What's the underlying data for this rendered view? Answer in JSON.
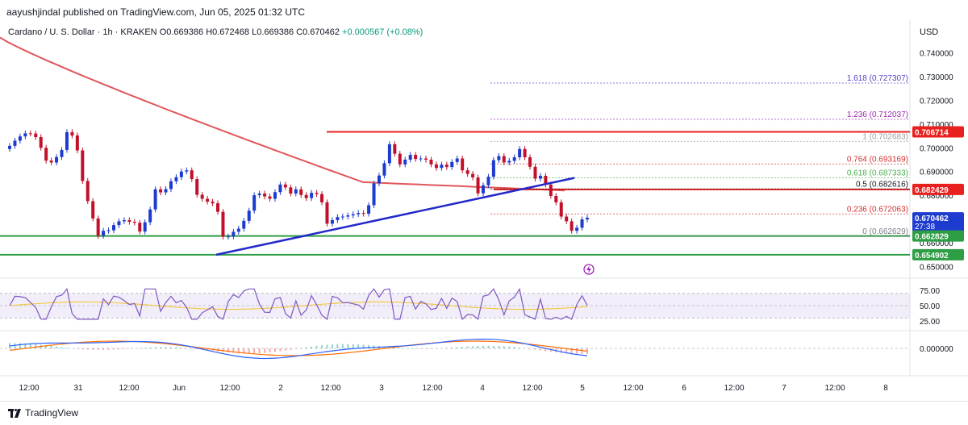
{
  "header": {
    "publisher_line": "aayushjindal published on TradingView.com, Jun 05, 2025 01:32 UTC"
  },
  "symbol": {
    "name": "Cardano / U. S. Dollar · 1h · KRAKEN",
    "o": "O0.669386",
    "h": "H0.672468",
    "l": "L0.669386",
    "c": "C0.670462",
    "change": "+0.000567 (+0.08%)"
  },
  "currency": "USD",
  "brand": "TradingView",
  "colors": {
    "up": "#1e3bcf",
    "down": "#c2102a",
    "ma": "#e0565b",
    "trend": "#2329c9",
    "red_line": "#e8211f",
    "green_line": "#2e9e45",
    "rsi": "#7e57c2",
    "macd": "#2962ff",
    "signal": "#ff6d00"
  },
  "chart_data": {
    "type": "candlestick",
    "ylim": [
      0.645,
      0.746
    ],
    "x_ticks": [
      "12:00",
      "31",
      "12:00",
      "Jun",
      "12:00",
      "2",
      "12:00",
      "3",
      "12:00",
      "4",
      "12:00",
      "5",
      "12:00",
      "6",
      "12:00",
      "7",
      "12:00",
      "8"
    ],
    "y_ticks": [
      "0.740000",
      "0.730000",
      "0.720000",
      "0.710000",
      "0.700000",
      "0.690000",
      "0.680000",
      "0.670000",
      "0.660000",
      "0.650000"
    ],
    "price_badges": [
      {
        "label": "0.706714",
        "value": 0.706714,
        "color": "#e8211f"
      },
      {
        "label": "0.682429",
        "value": 0.682429,
        "color": "#e8211f"
      },
      {
        "label": "0.670462",
        "value": 0.670462,
        "color": "#1e3bcf",
        "sub": "27:38"
      },
      {
        "label": "0.662829",
        "value": 0.662829,
        "color": "#2e9e45"
      },
      {
        "label": "0.654902",
        "value": 0.654902,
        "color": "#2e9e45"
      }
    ],
    "fib_levels": [
      {
        "label": "1.618 (0.727307)",
        "value": 0.727307,
        "color": "#5b3fc4"
      },
      {
        "label": "1.236 (0.712037)",
        "value": 0.712037,
        "color": "#9c27b0"
      },
      {
        "label": "1 (0.702683)",
        "value": 0.702683,
        "color": "#9e9e9e"
      },
      {
        "label": "0.764 (0.693169)",
        "value": 0.693169,
        "color": "#d32f2f"
      },
      {
        "label": "0.618 (0.687333)",
        "value": 0.687333,
        "color": "#4caf50"
      },
      {
        "label": "0.5 (0.682616)",
        "value": 0.682616,
        "color": "#131722"
      },
      {
        "label": "0.236 (0.672063)",
        "value": 0.672063,
        "color": "#d32f2f"
      },
      {
        "label": "0 (0.662629)",
        "value": 0.662629,
        "color": "#787b86"
      }
    ],
    "closes": [
      0.7008,
      0.703,
      0.7048,
      0.7061,
      0.706,
      0.7045,
      0.7,
      0.6946,
      0.6938,
      0.6961,
      0.6991,
      0.7066,
      0.7052,
      0.6989,
      0.686,
      0.6775,
      0.6702,
      0.6629,
      0.665,
      0.6652,
      0.6674,
      0.669,
      0.6695,
      0.6688,
      0.6684,
      0.6647,
      0.6686,
      0.674,
      0.6825,
      0.6812,
      0.6826,
      0.6859,
      0.6876,
      0.69,
      0.6905,
      0.6868,
      0.6802,
      0.6785,
      0.6773,
      0.6766,
      0.673,
      0.6625,
      0.6626,
      0.6646,
      0.6659,
      0.6692,
      0.6735,
      0.68,
      0.6807,
      0.6795,
      0.6785,
      0.6813,
      0.6845,
      0.6833,
      0.6807,
      0.6825,
      0.6801,
      0.6788,
      0.681,
      0.6805,
      0.677,
      0.668,
      0.6695,
      0.6708,
      0.671,
      0.6715,
      0.672,
      0.6725,
      0.6722,
      0.6758,
      0.685,
      0.6883,
      0.6935,
      0.7015,
      0.6975,
      0.693,
      0.695,
      0.697,
      0.6953,
      0.6955,
      0.695,
      0.693,
      0.6915,
      0.6929,
      0.6919,
      0.694,
      0.6955,
      0.6905,
      0.689,
      0.6875,
      0.6808,
      0.6842,
      0.6878,
      0.6948,
      0.6965,
      0.6938,
      0.6945,
      0.696,
      0.6995,
      0.696,
      0.692,
      0.687,
      0.6882,
      0.6845,
      0.6797,
      0.677,
      0.671,
      0.669,
      0.665,
      0.6663,
      0.6698,
      0.6705
    ]
  },
  "rsi": {
    "labels": [
      "75.00",
      "50.00",
      "25.00"
    ]
  },
  "macd": {
    "label": "0.000000"
  }
}
